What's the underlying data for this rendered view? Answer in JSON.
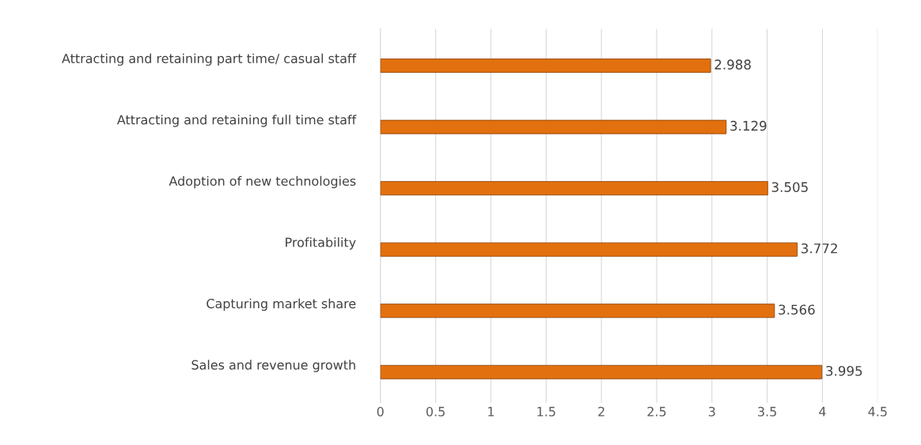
{
  "chart_data": {
    "type": "bar",
    "orientation": "horizontal",
    "categories": [
      "Attracting and retaining part time/ casual staff",
      "Attracting and retaining full time staff",
      "Adoption of new technologies",
      "Profitability",
      "Capturing market share",
      "Sales and revenue growth"
    ],
    "values": [
      2.988,
      3.129,
      3.505,
      3.772,
      3.566,
      3.995
    ],
    "color": "#e2700f",
    "xlim": [
      0,
      4.5
    ],
    "xticks": [
      0,
      0.5,
      1,
      1.5,
      2,
      2.5,
      3,
      3.5,
      4,
      4.5
    ],
    "grid": "x",
    "data_labels": true
  }
}
